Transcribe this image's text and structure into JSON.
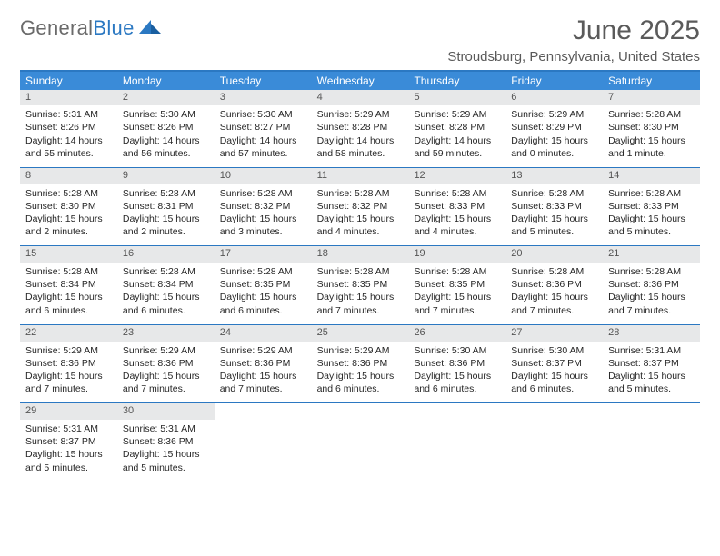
{
  "logo": {
    "word1": "General",
    "word2": "Blue"
  },
  "title": "June 2025",
  "location": "Stroudsburg, Pennsylvania, United States",
  "colors": {
    "header_bar": "#3a8bd8",
    "border": "#2b78c2",
    "daynum_bg": "#e7e8e9",
    "text_dark": "#262626",
    "text_muted": "#5a5a5a"
  },
  "days_of_week": [
    "Sunday",
    "Monday",
    "Tuesday",
    "Wednesday",
    "Thursday",
    "Friday",
    "Saturday"
  ],
  "start_offset": 0,
  "days": [
    {
      "n": 1,
      "sr": "5:31 AM",
      "ss": "8:26 PM",
      "dl": "14 hours and 55 minutes."
    },
    {
      "n": 2,
      "sr": "5:30 AM",
      "ss": "8:26 PM",
      "dl": "14 hours and 56 minutes."
    },
    {
      "n": 3,
      "sr": "5:30 AM",
      "ss": "8:27 PM",
      "dl": "14 hours and 57 minutes."
    },
    {
      "n": 4,
      "sr": "5:29 AM",
      "ss": "8:28 PM",
      "dl": "14 hours and 58 minutes."
    },
    {
      "n": 5,
      "sr": "5:29 AM",
      "ss": "8:28 PM",
      "dl": "14 hours and 59 minutes."
    },
    {
      "n": 6,
      "sr": "5:29 AM",
      "ss": "8:29 PM",
      "dl": "15 hours and 0 minutes."
    },
    {
      "n": 7,
      "sr": "5:28 AM",
      "ss": "8:30 PM",
      "dl": "15 hours and 1 minute."
    },
    {
      "n": 8,
      "sr": "5:28 AM",
      "ss": "8:30 PM",
      "dl": "15 hours and 2 minutes."
    },
    {
      "n": 9,
      "sr": "5:28 AM",
      "ss": "8:31 PM",
      "dl": "15 hours and 2 minutes."
    },
    {
      "n": 10,
      "sr": "5:28 AM",
      "ss": "8:32 PM",
      "dl": "15 hours and 3 minutes."
    },
    {
      "n": 11,
      "sr": "5:28 AM",
      "ss": "8:32 PM",
      "dl": "15 hours and 4 minutes."
    },
    {
      "n": 12,
      "sr": "5:28 AM",
      "ss": "8:33 PM",
      "dl": "15 hours and 4 minutes."
    },
    {
      "n": 13,
      "sr": "5:28 AM",
      "ss": "8:33 PM",
      "dl": "15 hours and 5 minutes."
    },
    {
      "n": 14,
      "sr": "5:28 AM",
      "ss": "8:33 PM",
      "dl": "15 hours and 5 minutes."
    },
    {
      "n": 15,
      "sr": "5:28 AM",
      "ss": "8:34 PM",
      "dl": "15 hours and 6 minutes."
    },
    {
      "n": 16,
      "sr": "5:28 AM",
      "ss": "8:34 PM",
      "dl": "15 hours and 6 minutes."
    },
    {
      "n": 17,
      "sr": "5:28 AM",
      "ss": "8:35 PM",
      "dl": "15 hours and 6 minutes."
    },
    {
      "n": 18,
      "sr": "5:28 AM",
      "ss": "8:35 PM",
      "dl": "15 hours and 7 minutes."
    },
    {
      "n": 19,
      "sr": "5:28 AM",
      "ss": "8:35 PM",
      "dl": "15 hours and 7 minutes."
    },
    {
      "n": 20,
      "sr": "5:28 AM",
      "ss": "8:36 PM",
      "dl": "15 hours and 7 minutes."
    },
    {
      "n": 21,
      "sr": "5:28 AM",
      "ss": "8:36 PM",
      "dl": "15 hours and 7 minutes."
    },
    {
      "n": 22,
      "sr": "5:29 AM",
      "ss": "8:36 PM",
      "dl": "15 hours and 7 minutes."
    },
    {
      "n": 23,
      "sr": "5:29 AM",
      "ss": "8:36 PM",
      "dl": "15 hours and 7 minutes."
    },
    {
      "n": 24,
      "sr": "5:29 AM",
      "ss": "8:36 PM",
      "dl": "15 hours and 7 minutes."
    },
    {
      "n": 25,
      "sr": "5:29 AM",
      "ss": "8:36 PM",
      "dl": "15 hours and 6 minutes."
    },
    {
      "n": 26,
      "sr": "5:30 AM",
      "ss": "8:36 PM",
      "dl": "15 hours and 6 minutes."
    },
    {
      "n": 27,
      "sr": "5:30 AM",
      "ss": "8:37 PM",
      "dl": "15 hours and 6 minutes."
    },
    {
      "n": 28,
      "sr": "5:31 AM",
      "ss": "8:37 PM",
      "dl": "15 hours and 5 minutes."
    },
    {
      "n": 29,
      "sr": "5:31 AM",
      "ss": "8:37 PM",
      "dl": "15 hours and 5 minutes."
    },
    {
      "n": 30,
      "sr": "5:31 AM",
      "ss": "8:36 PM",
      "dl": "15 hours and 5 minutes."
    }
  ],
  "labels": {
    "sunrise": "Sunrise: ",
    "sunset": "Sunset: ",
    "daylight": "Daylight: "
  }
}
